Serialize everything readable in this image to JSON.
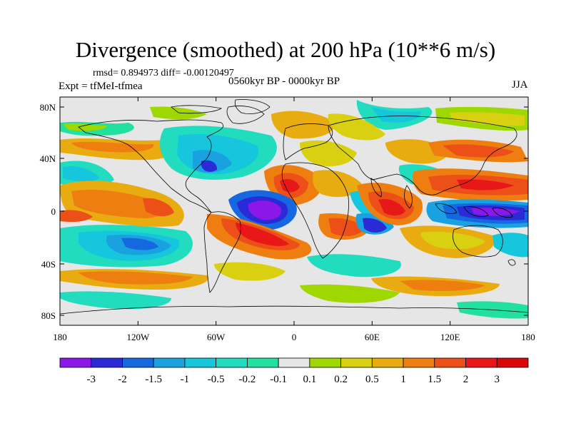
{
  "title": "Divergence (smoothed) at 200 hPa (10**6 m/s)",
  "stats_line": "rmsd= 0.894973 diff= -0.00120497",
  "experiment_line": "Expt = tfMeI-tfmea",
  "period_line": "0560kyr BP - 0000kyr BP",
  "season": "JJA",
  "lat_ticks": [
    "80N",
    "40N",
    "0",
    "40S",
    "80S"
  ],
  "lon_ticks": [
    "180",
    "120W",
    "60W",
    "0",
    "60E",
    "120E",
    "180"
  ],
  "colorbar": {
    "labels": [
      "-3",
      "-2",
      "-1.5",
      "-1",
      "-0.5",
      "-0.2",
      "-0.1",
      "0.1",
      "0.2",
      "0.5",
      "1",
      "1.5",
      "2",
      "3"
    ],
    "colors": [
      "#8c18e8",
      "#2a2ad6",
      "#1668e0",
      "#1aa2e0",
      "#16c6dc",
      "#22dcc0",
      "#22e0a0",
      "#e6e6e6",
      "#9ed800",
      "#d8d010",
      "#e8ac10",
      "#ee7e10",
      "#ec5018",
      "#e81818",
      "#d80808"
    ]
  },
  "colors": {
    "neutral_background": "#e6e6e6",
    "coastline": "#000000"
  }
}
